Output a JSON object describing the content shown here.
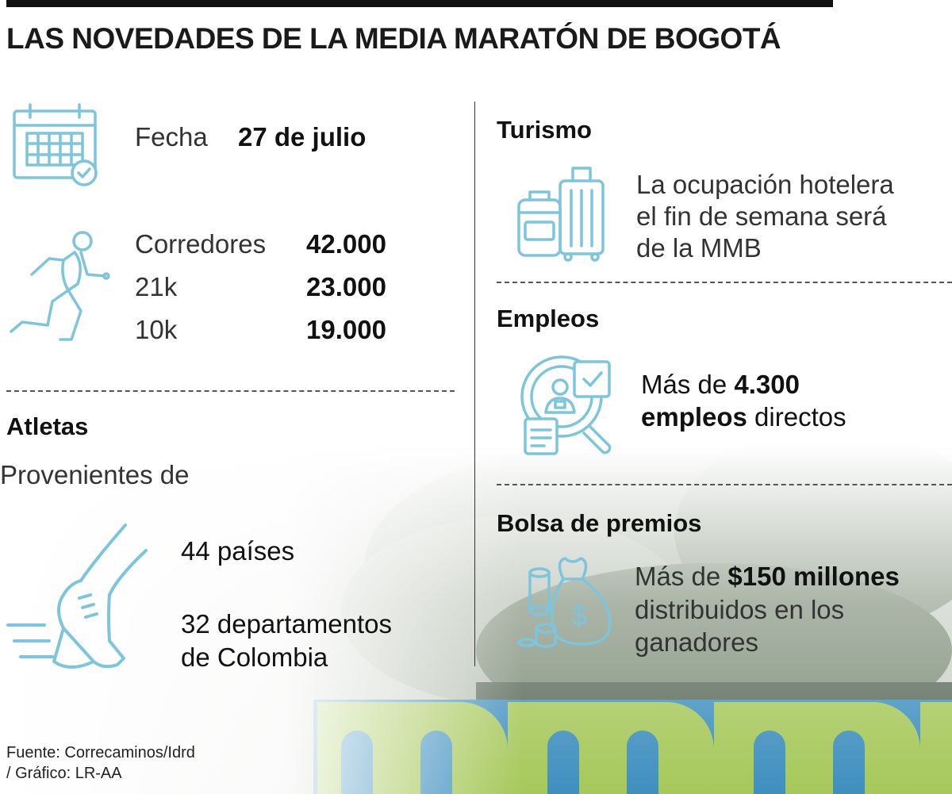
{
  "title": "LAS NOVEDADES DE LA MEDIA MARATÓN DE BOGOTÁ",
  "fecha": {
    "label": "Fecha",
    "value": "27 de julio"
  },
  "corredores": {
    "rows": [
      {
        "label": "Corredores",
        "value": "42.000"
      },
      {
        "label": "21k",
        "value": "23.000"
      },
      {
        "label": "10k",
        "value": "19.000"
      }
    ]
  },
  "atletas": {
    "heading": "Atletas",
    "subheading": "Provenientes de",
    "paises": "44 países",
    "departamentos_line1": "32 departamentos",
    "departamentos_line2": "de Colombia"
  },
  "turismo": {
    "heading": "Turismo",
    "line1": "La ocupación hotelera",
    "line2": "el fin de semana será",
    "line3": "de la MMB"
  },
  "empleos": {
    "heading": "Empleos",
    "prefix": "Más de ",
    "number": "4.300",
    "bold_word": "empleos",
    "suffix": " directos"
  },
  "premios": {
    "heading": "Bolsa de premios",
    "prefix": "Más de ",
    "amount": "$150 millones",
    "line2": "distribuidos en los",
    "line3": "ganadores"
  },
  "source": {
    "line1": "Fuente: Correcaminos/Idrd",
    "line2": "/ Gráfico: LR-AA"
  },
  "colors": {
    "icon": "#7cc5dc",
    "text": "#1a1a1a",
    "sign_green": "#a6c85a",
    "sign_blue": "#3f8fbf"
  },
  "icons": [
    "calendar-check-icon",
    "runner-icon",
    "running-shoe-icon",
    "luggage-icon",
    "job-search-icon",
    "money-bag-icon"
  ]
}
